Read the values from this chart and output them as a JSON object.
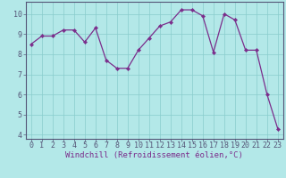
{
  "x": [
    0,
    1,
    2,
    3,
    4,
    5,
    6,
    7,
    8,
    9,
    10,
    11,
    12,
    13,
    14,
    15,
    16,
    17,
    18,
    19,
    20,
    21,
    22,
    23
  ],
  "y": [
    8.5,
    8.9,
    8.9,
    9.2,
    9.2,
    8.6,
    9.3,
    7.7,
    7.3,
    7.3,
    8.2,
    8.8,
    9.4,
    9.6,
    10.2,
    10.2,
    9.9,
    8.1,
    10.0,
    9.7,
    8.2,
    8.2,
    6.0,
    4.3
  ],
  "line_color": "#7b2d8b",
  "marker": "D",
  "marker_size": 2.2,
  "bg_color": "#b3e8e8",
  "grid_color": "#89cccc",
  "xlabel": "Windchill (Refroidissement éolien,°C)",
  "xlim": [
    -0.5,
    23.5
  ],
  "ylim": [
    3.8,
    10.6
  ],
  "yticks": [
    4,
    5,
    6,
    7,
    8,
    9,
    10
  ],
  "xticks": [
    0,
    1,
    2,
    3,
    4,
    5,
    6,
    7,
    8,
    9,
    10,
    11,
    12,
    13,
    14,
    15,
    16,
    17,
    18,
    19,
    20,
    21,
    22,
    23
  ],
  "xlabel_fontsize": 6.5,
  "tick_fontsize": 6.0,
  "spine_color": "#7b2d8b",
  "label_color": "#7b2d8b",
  "axis_line_color": "#555577"
}
